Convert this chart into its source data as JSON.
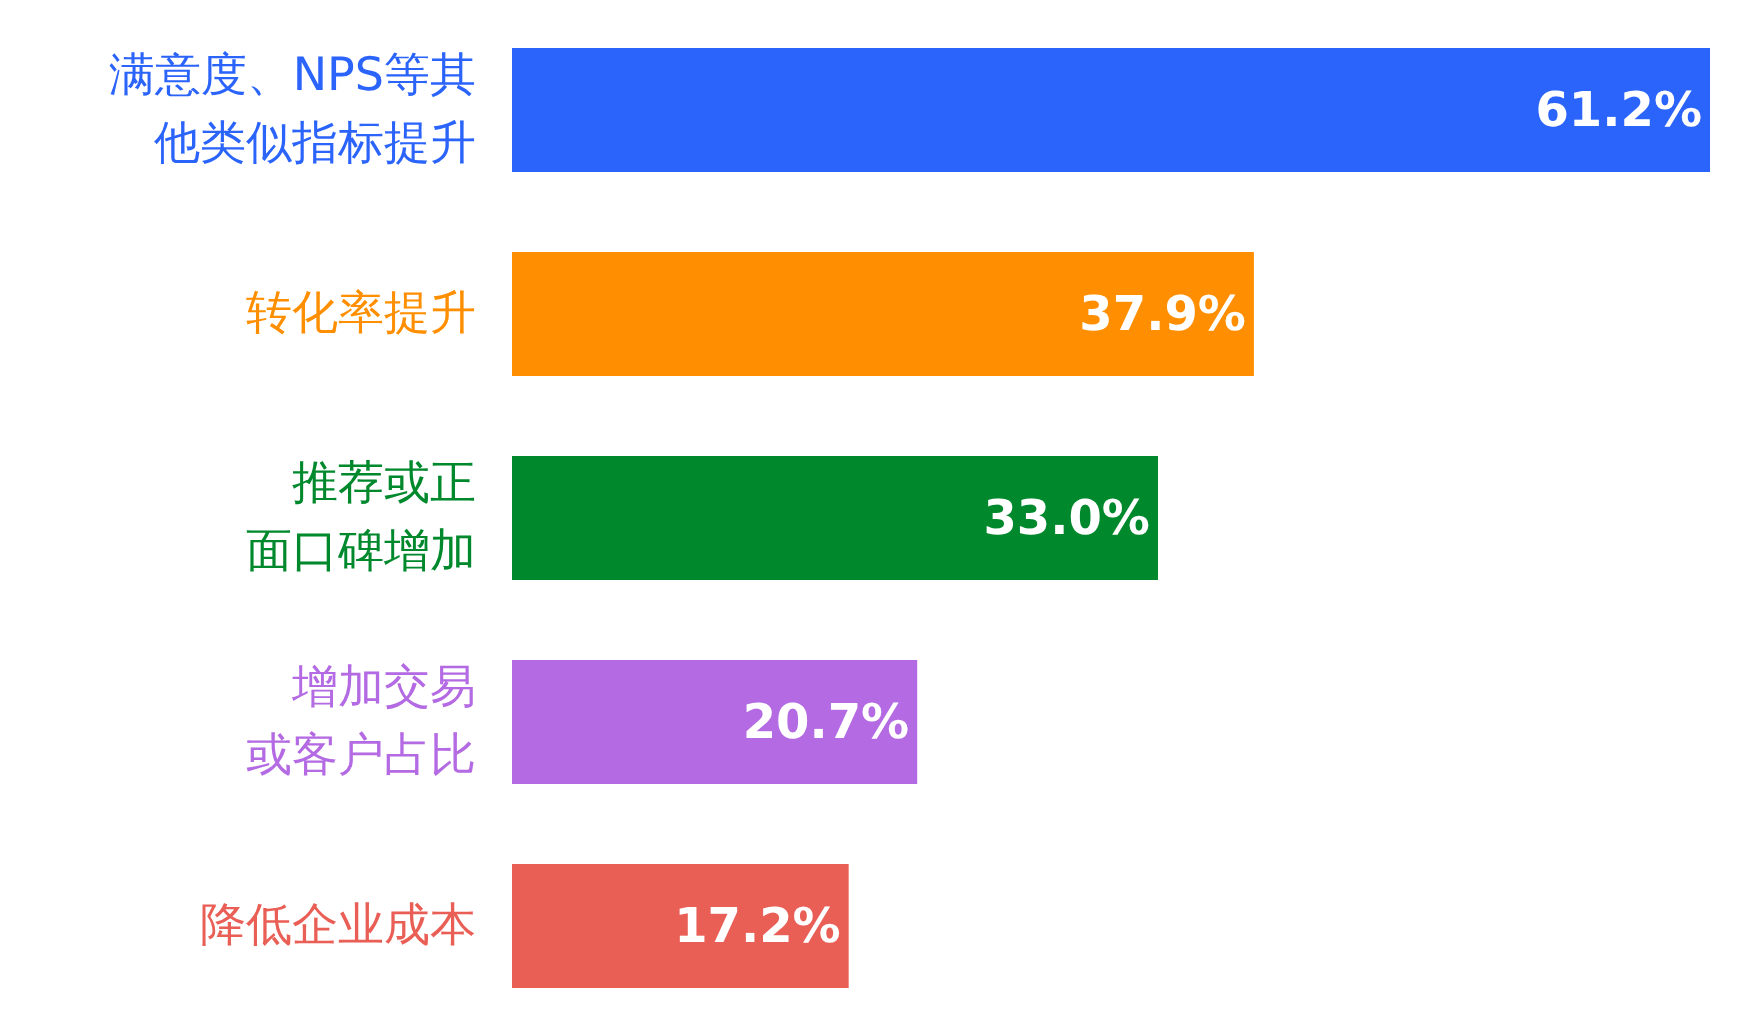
{
  "chart_data": {
    "type": "bar",
    "orientation": "horizontal",
    "categories": [
      "满意度、NPS等其他类似指标提升",
      "转化率提升",
      "推荐或正面口碑增加",
      "增加交易或客户占比",
      "降低企业成本"
    ],
    "values": [
      61.2,
      37.9,
      33.0,
      20.7,
      17.2
    ],
    "value_labels": [
      "61.2%",
      "37.9%",
      "33.0%",
      "20.7%",
      "17.2%"
    ],
    "colors": [
      "#2b64fb",
      "#ff8f00",
      "#00892c",
      "#b36ae2",
      "#e95f56"
    ]
  }
}
